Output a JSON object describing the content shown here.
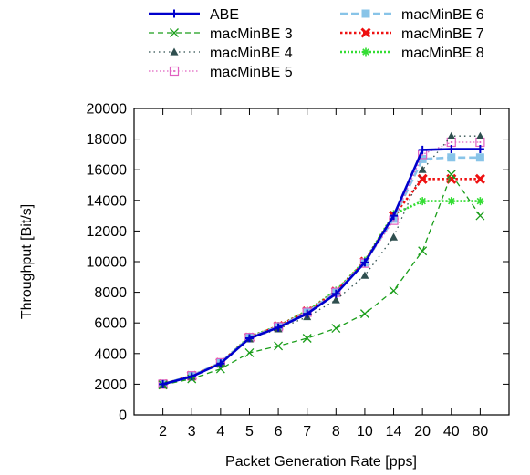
{
  "chart_data": {
    "type": "line",
    "x": [
      "2",
      "3",
      "4",
      "5",
      "6",
      "7",
      "8",
      "10",
      "14",
      "20",
      "40",
      "80"
    ],
    "xlabel": "Packet Generation Rate [pps]",
    "ylabel": "Throughput [Bit/s]",
    "ylim": [
      0,
      20000
    ],
    "yticks": [
      "0",
      "2000",
      "4000",
      "6000",
      "8000",
      "10000",
      "12000",
      "14000",
      "16000",
      "18000",
      "20000"
    ],
    "grid": false,
    "legend_position": "top",
    "series": [
      {
        "name": "ABE",
        "color": "#0000cc",
        "dash": "",
        "marker": "plus",
        "values": [
          2000,
          2500,
          3350,
          5000,
          5700,
          6600,
          7900,
          9950,
          13000,
          17300,
          17350,
          17350
        ]
      },
      {
        "name": "macMinBE 3",
        "color": "#1a9e1a",
        "dash": "6,4",
        "marker": "x",
        "values": [
          1950,
          2350,
          3000,
          4050,
          4500,
          5000,
          5650,
          6600,
          8100,
          10700,
          15700,
          13000
        ]
      },
      {
        "name": "macMinBE 4",
        "color": "#2f4f4f",
        "dash": "1.5,4",
        "marker": "triangle",
        "values": [
          1950,
          2500,
          3300,
          4950,
          5600,
          6400,
          7500,
          9100,
          11600,
          16000,
          18200,
          18200
        ]
      },
      {
        "name": "macMinBE 5",
        "color": "#e060c0",
        "dash": "1.5,2.5",
        "marker": "square-open",
        "values": [
          2000,
          2550,
          3400,
          5050,
          5750,
          6700,
          8000,
          9900,
          12700,
          17000,
          17800,
          17800
        ]
      },
      {
        "name": "macMinBE 6",
        "color": "#88c4e8",
        "dash": "8,4",
        "marker": "square",
        "values": [
          2000,
          2550,
          3400,
          5050,
          5750,
          6700,
          8000,
          9950,
          12800,
          16700,
          16800,
          16800
        ]
      },
      {
        "name": "macMinBE 7",
        "color": "#ee1111",
        "dash": "2.5,2.5",
        "marker": "x-bold",
        "values": [
          2000,
          2550,
          3400,
          5050,
          5800,
          6750,
          8050,
          10000,
          13000,
          15400,
          15400,
          15400
        ]
      },
      {
        "name": "macMinBE 8",
        "color": "#33dd33",
        "dash": "2,2",
        "marker": "star",
        "values": [
          2000,
          2550,
          3400,
          5100,
          5800,
          6800,
          8100,
          10050,
          13100,
          13950,
          13950,
          13950
        ]
      }
    ]
  }
}
